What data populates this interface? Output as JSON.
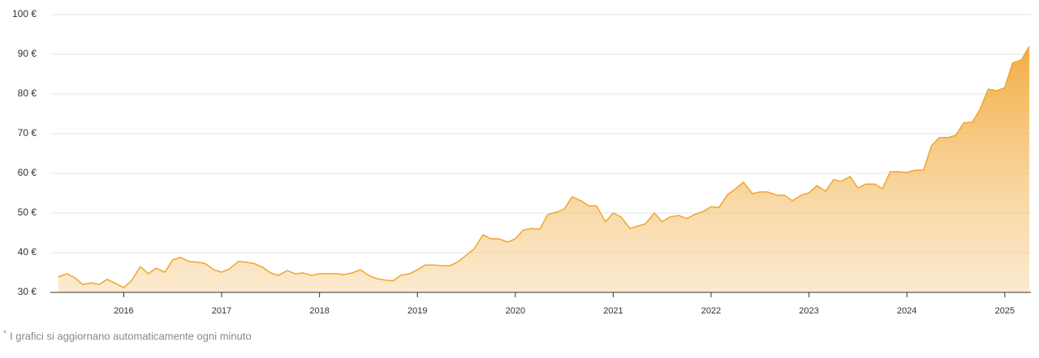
{
  "chart_data": {
    "type": "area",
    "x": [
      2015.33,
      2015.42,
      2015.5,
      2015.58,
      2015.67,
      2015.75,
      2015.83,
      2015.92,
      2016,
      2016.08,
      2016.17,
      2016.25,
      2016.33,
      2016.42,
      2016.5,
      2016.58,
      2016.67,
      2016.75,
      2016.83,
      2016.92,
      2017,
      2017.08,
      2017.17,
      2017.25,
      2017.33,
      2017.42,
      2017.5,
      2017.58,
      2017.67,
      2017.75,
      2017.83,
      2017.92,
      2018,
      2018.08,
      2018.17,
      2018.25,
      2018.33,
      2018.42,
      2018.5,
      2018.58,
      2018.67,
      2018.75,
      2018.83,
      2018.92,
      2019,
      2019.08,
      2019.17,
      2019.25,
      2019.33,
      2019.42,
      2019.5,
      2019.58,
      2019.67,
      2019.75,
      2019.83,
      2019.92,
      2020,
      2020.08,
      2020.17,
      2020.25,
      2020.33,
      2020.42,
      2020.5,
      2020.58,
      2020.67,
      2020.75,
      2020.83,
      2020.92,
      2021,
      2021.08,
      2021.17,
      2021.25,
      2021.33,
      2021.42,
      2021.5,
      2021.58,
      2021.67,
      2021.75,
      2021.83,
      2021.92,
      2022,
      2022.08,
      2022.17,
      2022.25,
      2022.33,
      2022.42,
      2022.5,
      2022.58,
      2022.67,
      2022.75,
      2022.83,
      2022.92,
      2023,
      2023.08,
      2023.17,
      2023.25,
      2023.33,
      2023.42,
      2023.5,
      2023.58,
      2023.67,
      2023.75,
      2023.83,
      2023.92,
      2024,
      2024.08,
      2024.17,
      2024.25,
      2024.33,
      2024.42,
      2024.5,
      2024.58,
      2024.67,
      2024.75,
      2024.83,
      2024.92,
      2025,
      2025.08,
      2025.17,
      2025.25
    ],
    "values": [
      33.9,
      34.7,
      33.7,
      32,
      32.4,
      32,
      33.3,
      32.2,
      31.2,
      33,
      36.5,
      34.7,
      36.1,
      35.1,
      38.2,
      38.8,
      37.8,
      37.6,
      37.3,
      35.7,
      35.1,
      35.9,
      37.8,
      37.6,
      37.3,
      36.3,
      34.9,
      34.3,
      35.5,
      34.7,
      34.9,
      34.3,
      34.7,
      34.7,
      34.7,
      34.5,
      34.9,
      35.7,
      34.3,
      33.5,
      33.1,
      32.9,
      34.3,
      34.7,
      35.7,
      36.9,
      36.9,
      36.7,
      36.7,
      37.8,
      39.4,
      41,
      44.5,
      43.5,
      43.5,
      42.7,
      43.5,
      45.7,
      46.1,
      45.9,
      49.6,
      50.2,
      51,
      54.1,
      53.1,
      51.8,
      51.8,
      47.8,
      50,
      49,
      46.1,
      46.7,
      47.3,
      50,
      47.8,
      49,
      49.4,
      48.6,
      49.6,
      50.4,
      51.6,
      51.4,
      54.7,
      56.1,
      57.8,
      54.9,
      55.3,
      55.3,
      54.5,
      54.5,
      53.1,
      54.5,
      55.1,
      56.9,
      55.5,
      58.4,
      58,
      59.2,
      56.3,
      57.3,
      57.3,
      56.1,
      60.4,
      60.4,
      60.2,
      60.8,
      60.8,
      66.9,
      69,
      69,
      69.6,
      72.7,
      72.9,
      76.3,
      81.2,
      80.8,
      81.6,
      87.8,
      88.6,
      92
    ],
    "color": "#f0a52c",
    "xlim": [
      2015.25,
      2025.25
    ],
    "xticks": [
      2016,
      2017,
      2018,
      2019,
      2020,
      2021,
      2022,
      2023,
      2024,
      2025
    ],
    "ylim": [
      30,
      100
    ],
    "yticks": [
      {
        "value": 30,
        "label": "30 €"
      },
      {
        "value": 40,
        "label": "40 €"
      },
      {
        "value": 50,
        "label": "50 €"
      },
      {
        "value": 60,
        "label": "60 €"
      },
      {
        "value": 70,
        "label": "70 €"
      },
      {
        "value": 80,
        "label": "80 €"
      },
      {
        "value": 90,
        "label": "90 €"
      },
      {
        "value": 100,
        "label": "100 €"
      }
    ],
    "grid": true,
    "footnote_marker": "*",
    "footnote": "I grafici si aggiornano automaticamente ogni minuto"
  }
}
